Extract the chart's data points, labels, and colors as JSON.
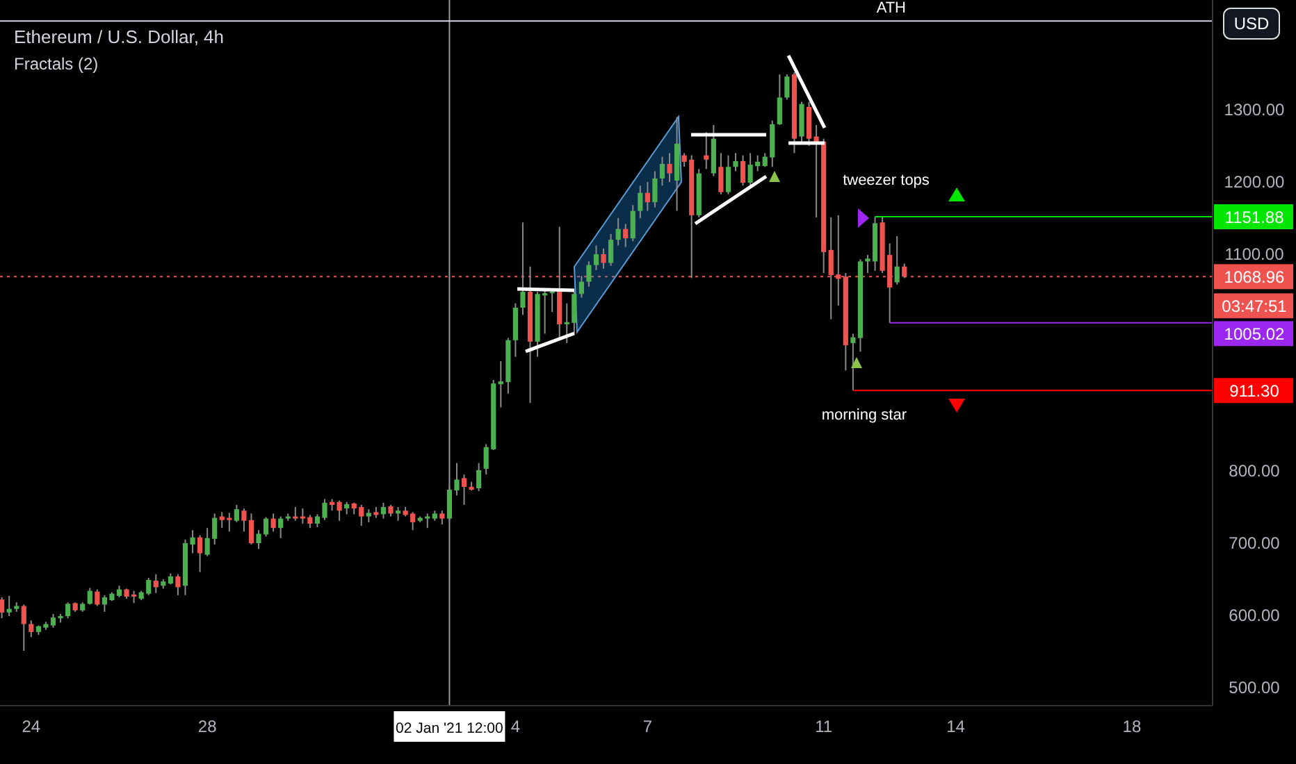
{
  "chart_data": {
    "type": "candlestick",
    "title": "Ethereum / U.S. Dollar, 4h",
    "subtitle": "Fractals (2)",
    "x": [
      "2020-12-23T08:00",
      "2020-12-23T12:00",
      "2020-12-23T16:00",
      "2020-12-23T20:00",
      "2020-12-24T00:00",
      "2020-12-24T04:00",
      "2020-12-24T08:00",
      "2020-12-24T12:00",
      "2020-12-24T16:00",
      "2020-12-24T20:00",
      "2020-12-25T00:00",
      "2020-12-25T04:00",
      "2020-12-25T08:00",
      "2020-12-25T12:00",
      "2020-12-25T16:00",
      "2020-12-25T20:00",
      "2020-12-26T00:00",
      "2020-12-26T04:00",
      "2020-12-26T08:00",
      "2020-12-26T12:00",
      "2020-12-26T16:00",
      "2020-12-26T20:00",
      "2020-12-27T00:00",
      "2020-12-27T04:00",
      "2020-12-27T08:00",
      "2020-12-27T12:00",
      "2020-12-27T16:00",
      "2020-12-27T20:00",
      "2020-12-28T00:00",
      "2020-12-28T04:00",
      "2020-12-28T08:00",
      "2020-12-28T12:00",
      "2020-12-28T16:00",
      "2020-12-28T20:00",
      "2020-12-29T00:00",
      "2020-12-29T04:00",
      "2020-12-29T08:00",
      "2020-12-29T12:00",
      "2020-12-29T16:00",
      "2020-12-29T20:00",
      "2020-12-30T00:00",
      "2020-12-30T04:00",
      "2020-12-30T08:00",
      "2020-12-30T12:00",
      "2020-12-30T16:00",
      "2020-12-30T20:00",
      "2020-12-31T00:00",
      "2020-12-31T04:00",
      "2020-12-31T08:00",
      "2020-12-31T12:00",
      "2020-12-31T16:00",
      "2020-12-31T20:00",
      "2021-01-01T00:00",
      "2021-01-01T04:00",
      "2021-01-01T08:00",
      "2021-01-01T12:00",
      "2021-01-01T16:00",
      "2021-01-01T20:00",
      "2021-01-02T00:00",
      "2021-01-02T04:00",
      "2021-01-02T08:00",
      "2021-01-02T12:00",
      "2021-01-02T16:00",
      "2021-01-02T20:00",
      "2021-01-03T00:00",
      "2021-01-03T04:00",
      "2021-01-03T08:00",
      "2021-01-03T12:00",
      "2021-01-03T16:00",
      "2021-01-03T20:00",
      "2021-01-04T00:00",
      "2021-01-04T04:00",
      "2021-01-04T08:00",
      "2021-01-04T12:00",
      "2021-01-04T16:00",
      "2021-01-04T20:00",
      "2021-01-05T00:00",
      "2021-01-05T04:00",
      "2021-01-05T08:00",
      "2021-01-05T12:00",
      "2021-01-05T16:00",
      "2021-01-05T20:00",
      "2021-01-06T00:00",
      "2021-01-06T04:00",
      "2021-01-06T08:00",
      "2021-01-06T12:00",
      "2021-01-06T16:00",
      "2021-01-06T20:00",
      "2021-01-07T00:00",
      "2021-01-07T04:00",
      "2021-01-07T08:00",
      "2021-01-07T12:00",
      "2021-01-07T16:00",
      "2021-01-07T20:00",
      "2021-01-08T00:00",
      "2021-01-08T04:00",
      "2021-01-08T08:00",
      "2021-01-08T12:00",
      "2021-01-08T16:00",
      "2021-01-08T20:00",
      "2021-01-09T00:00",
      "2021-01-09T04:00",
      "2021-01-09T08:00",
      "2021-01-09T12:00",
      "2021-01-09T16:00",
      "2021-01-09T20:00",
      "2021-01-10T00:00",
      "2021-01-10T04:00",
      "2021-01-10T08:00",
      "2021-01-10T12:00",
      "2021-01-10T16:00",
      "2021-01-10T20:00",
      "2021-01-11T00:00",
      "2021-01-11T04:00",
      "2021-01-11T08:00",
      "2021-01-11T12:00",
      "2021-01-11T16:00",
      "2021-01-11T20:00",
      "2021-01-12T00:00",
      "2021-01-12T04:00",
      "2021-01-12T08:00",
      "2021-01-12T12:00",
      "2021-01-12T16:00",
      "2021-01-12T20:00"
    ],
    "ohlc": [
      [
        622,
        625,
        596,
        604
      ],
      [
        604,
        627,
        599,
        609
      ],
      [
        609,
        618,
        605,
        613
      ],
      [
        613,
        615,
        551,
        588
      ],
      [
        588,
        593,
        570,
        577
      ],
      [
        577,
        586,
        573,
        585
      ],
      [
        583,
        591,
        580,
        588
      ],
      [
        586,
        602,
        583,
        597
      ],
      [
        596,
        602,
        590,
        599
      ],
      [
        599,
        618,
        596,
        616
      ],
      [
        617,
        618,
        605,
        607
      ],
      [
        607,
        618,
        605,
        616
      ],
      [
        616,
        638,
        615,
        634
      ],
      [
        633,
        636,
        613,
        615
      ],
      [
        615,
        628,
        605,
        625
      ],
      [
        621,
        632,
        620,
        630
      ],
      [
        627,
        641,
        625,
        636
      ],
      [
        636,
        637,
        623,
        626
      ],
      [
        629,
        634,
        617,
        626
      ],
      [
        623,
        634,
        621,
        632
      ],
      [
        630,
        652,
        628,
        649
      ],
      [
        648,
        657,
        631,
        639
      ],
      [
        641,
        650,
        637,
        647
      ],
      [
        644,
        658,
        643,
        654
      ],
      [
        654,
        657,
        628,
        639
      ],
      [
        641,
        705,
        628,
        700
      ],
      [
        698,
        718,
        686,
        708
      ],
      [
        708,
        711,
        660,
        686
      ],
      [
        684,
        721,
        682,
        707
      ],
      [
        706,
        741,
        698,
        735
      ],
      [
        737,
        743,
        721,
        732
      ],
      [
        735,
        742,
        716,
        732
      ],
      [
        731,
        753,
        729,
        747
      ],
      [
        745,
        748,
        716,
        731
      ],
      [
        732,
        741,
        698,
        700
      ],
      [
        700,
        718,
        692,
        713
      ],
      [
        712,
        736,
        709,
        734
      ],
      [
        734,
        741,
        716,
        721
      ],
      [
        721,
        737,
        707,
        734
      ],
      [
        734,
        741,
        731,
        737
      ],
      [
        737,
        750,
        731,
        734
      ],
      [
        737,
        748,
        727,
        734
      ],
      [
        736,
        739,
        721,
        727
      ],
      [
        727,
        740,
        722,
        737
      ],
      [
        735,
        761,
        732,
        756
      ],
      [
        757,
        761,
        745,
        753
      ],
      [
        757,
        759,
        731,
        745
      ],
      [
        748,
        757,
        740,
        754
      ],
      [
        755,
        756,
        740,
        748
      ],
      [
        750,
        753,
        724,
        737
      ],
      [
        737,
        747,
        729,
        742
      ],
      [
        743,
        750,
        735,
        739
      ],
      [
        740,
        756,
        734,
        750
      ],
      [
        751,
        753,
        737,
        741
      ],
      [
        741,
        750,
        731,
        745
      ],
      [
        745,
        750,
        737,
        739
      ],
      [
        741,
        743,
        718,
        729
      ],
      [
        731,
        737,
        729,
        735
      ],
      [
        734,
        741,
        721,
        737
      ],
      [
        734,
        745,
        731,
        741
      ],
      [
        741,
        745,
        726,
        734
      ],
      [
        734,
        779,
        731,
        774
      ],
      [
        773,
        811,
        766,
        788
      ],
      [
        790,
        795,
        753,
        778
      ],
      [
        778,
        785,
        773,
        774
      ],
      [
        776,
        811,
        772,
        801
      ],
      [
        803,
        837,
        795,
        833
      ],
      [
        830,
        926,
        829,
        921
      ],
      [
        920,
        952,
        888,
        924
      ],
      [
        923,
        984,
        907,
        981
      ],
      [
        981,
        1032,
        958,
        1026
      ],
      [
        1026,
        1144,
        1016,
        1048
      ],
      [
        1048,
        1083,
        894,
        979
      ],
      [
        979,
        1048,
        958,
        1045
      ],
      [
        1043,
        1050,
        990,
        1046
      ],
      [
        1046,
        1051,
        1020,
        1048
      ],
      [
        1048,
        1138,
        984,
        1003
      ],
      [
        1003,
        1032,
        977,
        1006
      ],
      [
        1005,
        1048,
        990,
        1045
      ],
      [
        1045,
        1070,
        1040,
        1062
      ],
      [
        1062,
        1090,
        1055,
        1085
      ],
      [
        1085,
        1112,
        1078,
        1100
      ],
      [
        1100,
        1108,
        1080,
        1088
      ],
      [
        1088,
        1128,
        1084,
        1120
      ],
      [
        1120,
        1150,
        1112,
        1135
      ],
      [
        1135,
        1142,
        1110,
        1122
      ],
      [
        1122,
        1168,
        1118,
        1160
      ],
      [
        1160,
        1195,
        1150,
        1185
      ],
      [
        1185,
        1200,
        1160,
        1172
      ],
      [
        1172,
        1215,
        1165,
        1205
      ],
      [
        1205,
        1235,
        1195,
        1225
      ],
      [
        1225,
        1240,
        1200,
        1212
      ],
      [
        1202,
        1290,
        1160,
        1253
      ],
      [
        1237,
        1240,
        1221,
        1228
      ],
      [
        1231,
        1237,
        1067,
        1154
      ],
      [
        1154,
        1218,
        1151,
        1212
      ],
      [
        1237,
        1269,
        1218,
        1231
      ],
      [
        1212,
        1279,
        1208,
        1260
      ],
      [
        1221,
        1240,
        1183,
        1186
      ],
      [
        1186,
        1237,
        1183,
        1221
      ],
      [
        1221,
        1240,
        1215,
        1229
      ],
      [
        1229,
        1237,
        1195,
        1199
      ],
      [
        1199,
        1240,
        1195,
        1224
      ],
      [
        1222,
        1237,
        1215,
        1228
      ],
      [
        1222,
        1240,
        1221,
        1235
      ],
      [
        1234,
        1285,
        1221,
        1280
      ],
      [
        1280,
        1349,
        1279,
        1317
      ],
      [
        1317,
        1349,
        1314,
        1346
      ],
      [
        1349,
        1352,
        1240,
        1260
      ],
      [
        1263,
        1311,
        1253,
        1308
      ],
      [
        1304,
        1311,
        1250,
        1260
      ],
      [
        1263,
        1279,
        1151,
        1256
      ],
      [
        1256,
        1260,
        1074,
        1103
      ],
      [
        1106,
        1151,
        1010,
        1071
      ],
      [
        1072,
        1154,
        1029,
        1066
      ],
      [
        1069,
        1074,
        939,
        974
      ],
      [
        977,
        990,
        911.3,
        985
      ],
      [
        984,
        1093,
        965,
        1090
      ],
      [
        1090,
        1099,
        1074,
        1094
      ],
      [
        1090,
        1151.88,
        1077,
        1143
      ],
      [
        1144,
        1151.88,
        1074,
        1077
      ],
      [
        1099,
        1115,
        1005.02,
        1054
      ],
      [
        1061,
        1125,
        1058,
        1083
      ],
      [
        1083,
        1087,
        1067,
        1068.96
      ]
    ],
    "series": [
      {
        "type": "line",
        "color": "#00e600",
        "x": [
          "2021-01-12T04:00",
          "2021-01-19T20:00"
        ],
        "values": [
          1151.88,
          1151.88
        ],
        "value_labels": [
          null,
          "1151.88"
        ]
      },
      {
        "type": "line",
        "color": "#9c27f0",
        "x": [
          "2021-01-12T12:00",
          "2021-01-19T20:00"
        ],
        "values": [
          1005.02,
          1005.02
        ],
        "value_labels": [
          null,
          "1005.02"
        ]
      },
      {
        "type": "line",
        "color": "#ff0000",
        "x": [
          "2021-01-11T16:00",
          "2021-01-19T20:00"
        ],
        "values": [
          911.3,
          911.3
        ],
        "value_labels": [
          null,
          "911.30"
        ]
      }
    ],
    "xlim": [
      "2020-12-23T07:00",
      "2021-01-19T20:00"
    ],
    "xticks": [
      {
        "value": "2020-12-24",
        "label": "24"
      },
      {
        "value": "2020-12-28",
        "label": "28"
      },
      {
        "value": "2021-01-04",
        "label": "4"
      },
      {
        "value": "2021-01-07",
        "label": "7"
      },
      {
        "value": "2021-01-11",
        "label": "11"
      },
      {
        "value": "2021-01-14",
        "label": "14"
      },
      {
        "value": "2021-01-18",
        "label": "18"
      }
    ],
    "ylim": [
      475,
      1452
    ],
    "yticks": [
      {
        "value": 500,
        "label": "500.00"
      },
      {
        "value": 600,
        "label": "600.00"
      },
      {
        "value": 700,
        "label": "700.00"
      },
      {
        "value": 800,
        "label": "800.00"
      },
      {
        "value": 1100,
        "label": "1100.00"
      },
      {
        "value": 1200,
        "label": "1200.00"
      },
      {
        "value": 1300,
        "label": "1300.00"
      }
    ],
    "ref_lines": [
      {
        "axis": "y",
        "value": 1423,
        "label": "ATH",
        "color": "#d1d4dc",
        "line_style": "solid"
      },
      {
        "axis": "y",
        "value": 1068.96,
        "label": "1068.96",
        "color": "#ef5350",
        "line_style": "dotted"
      },
      {
        "axis": "x",
        "value": "2021-01-02T12:00",
        "label": "02 Jan '21  12:00",
        "color": "#9598a1",
        "line_style": "solid"
      }
    ],
    "annotations": [
      "03:47:51",
      "USD",
      {
        "text": "tweezer tops",
        "x": "2021-01-12T04:00",
        "y": 1151.88
      },
      {
        "text": "morning star",
        "x": "2021-01-11T16:00",
        "y": 911.3
      }
    ],
    "grid": false
  }
}
